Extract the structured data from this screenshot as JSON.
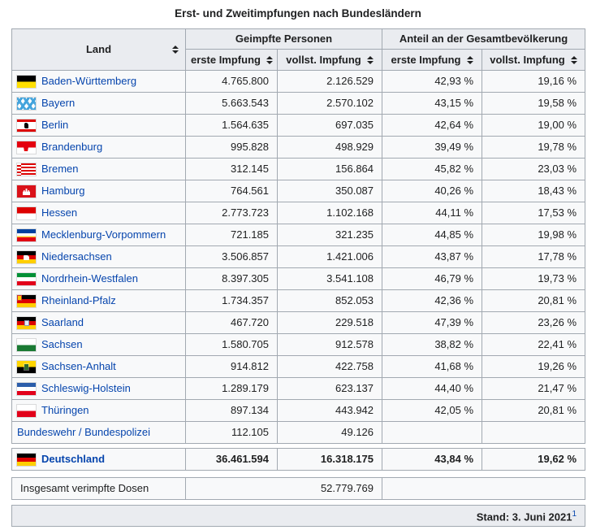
{
  "title": "Erst- und Zweitimpfungen nach Bundesländern",
  "colors": {
    "link_blue": "#0645ad",
    "header_bg": "#eaecf0",
    "row_bg": "#f8f9fa",
    "border": "#a2a9b1",
    "stand_bg": "#eaecf0",
    "text": "#202122"
  },
  "icons": {
    "sort": "up-down-triangles",
    "flags": [
      "flag-bw",
      "flag-by",
      "flag-be",
      "flag-bb",
      "flag-hb",
      "flag-hh",
      "flag-he",
      "flag-mv",
      "flag-ni",
      "flag-nw",
      "flag-rp",
      "flag-sl",
      "flag-sn",
      "flag-st",
      "flag-sh",
      "flag-th",
      "flag-de"
    ]
  },
  "table": {
    "headers": {
      "land": "Land",
      "group1": "Geimpfte Personen",
      "group2": "Anteil an der Gesamtbevölkerung"
    },
    "subheaders": [
      "erste Impfung",
      "vollst. Impfung",
      "erste Impfung",
      "vollst. Impfung"
    ],
    "rows": [
      {
        "flag": "bw",
        "land": "Baden-Württemberg",
        "erste": "4.765.800",
        "vollst": "2.126.529",
        "anteil_erste": "42,93 %",
        "anteil_vollst": "19,16 %"
      },
      {
        "flag": "by",
        "land": "Bayern",
        "erste": "5.663.543",
        "vollst": "2.570.102",
        "anteil_erste": "43,15 %",
        "anteil_vollst": "19,58 %"
      },
      {
        "flag": "be",
        "land": "Berlin",
        "erste": "1.564.635",
        "vollst": "697.035",
        "anteil_erste": "42,64 %",
        "anteil_vollst": "19,00 %"
      },
      {
        "flag": "bb",
        "land": "Brandenburg",
        "erste": "995.828",
        "vollst": "498.929",
        "anteil_erste": "39,49 %",
        "anteil_vollst": "19,78 %"
      },
      {
        "flag": "hb",
        "land": "Bremen",
        "erste": "312.145",
        "vollst": "156.864",
        "anteil_erste": "45,82 %",
        "anteil_vollst": "23,03 %"
      },
      {
        "flag": "hh",
        "land": "Hamburg",
        "erste": "764.561",
        "vollst": "350.087",
        "anteil_erste": "40,26 %",
        "anteil_vollst": "18,43 %"
      },
      {
        "flag": "he",
        "land": "Hessen",
        "erste": "2.773.723",
        "vollst": "1.102.168",
        "anteil_erste": "44,11 %",
        "anteil_vollst": "17,53 %"
      },
      {
        "flag": "mv",
        "land": "Mecklenburg-Vorpommern",
        "erste": "721.185",
        "vollst": "321.235",
        "anteil_erste": "44,85 %",
        "anteil_vollst": "19,98 %"
      },
      {
        "flag": "ni",
        "land": "Niedersachsen",
        "erste": "3.506.857",
        "vollst": "1.421.006",
        "anteil_erste": "43,87 %",
        "anteil_vollst": "17,78 %"
      },
      {
        "flag": "nw",
        "land": "Nordrhein-Westfalen",
        "erste": "8.397.305",
        "vollst": "3.541.108",
        "anteil_erste": "46,79 %",
        "anteil_vollst": "19,73 %"
      },
      {
        "flag": "rp",
        "land": "Rheinland-Pfalz",
        "erste": "1.734.357",
        "vollst": "852.053",
        "anteil_erste": "42,36 %",
        "anteil_vollst": "20,81 %"
      },
      {
        "flag": "sl",
        "land": "Saarland",
        "erste": "467.720",
        "vollst": "229.518",
        "anteil_erste": "47,39 %",
        "anteil_vollst": "23,26 %"
      },
      {
        "flag": "sn",
        "land": "Sachsen",
        "erste": "1.580.705",
        "vollst": "912.578",
        "anteil_erste": "38,82 %",
        "anteil_vollst": "22,41 %"
      },
      {
        "flag": "st",
        "land": "Sachsen-Anhalt",
        "erste": "914.812",
        "vollst": "422.758",
        "anteil_erste": "41,68 %",
        "anteil_vollst": "19,26 %"
      },
      {
        "flag": "sh",
        "land": "Schleswig-Holstein",
        "erste": "1.289.179",
        "vollst": "623.137",
        "anteil_erste": "44,40 %",
        "anteil_vollst": "21,47 %"
      },
      {
        "flag": "th",
        "land": "Thüringen",
        "erste": "897.134",
        "vollst": "443.942",
        "anteil_erste": "42,05 %",
        "anteil_vollst": "20,81 %"
      },
      {
        "flag": null,
        "land": "Bundeswehr / Bundespolizei",
        "erste": "112.105",
        "vollst": "49.126",
        "anteil_erste": "",
        "anteil_vollst": ""
      }
    ],
    "summary_row": {
      "flag": "de",
      "land": "Deutschland",
      "erste": "36.461.594",
      "vollst": "16.318.175",
      "anteil_erste": "43,84 %",
      "anteil_vollst": "19,62 %"
    },
    "doses_row": {
      "label": "Insgesamt verimpfte Dosen",
      "value": "52.779.769"
    },
    "footer": {
      "stand": "Stand: 3. Juni 2021",
      "ref": "1"
    }
  }
}
